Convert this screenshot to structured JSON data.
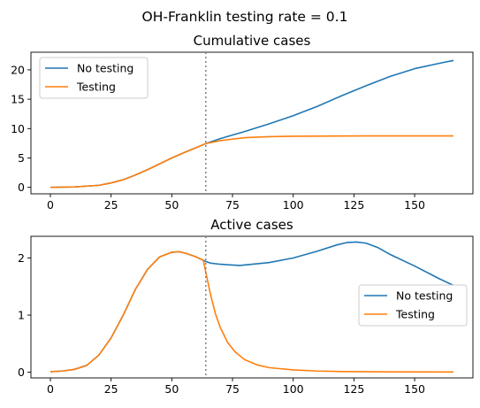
{
  "figure": {
    "title": "OH-Franklin testing rate = 0.1"
  },
  "colors": {
    "no_testing": "#1f77b4",
    "testing": "#ff7f0e",
    "vline": "#808080"
  },
  "chart_data": [
    {
      "type": "line",
      "title": "Cumulative cases",
      "xlabel": "",
      "ylabel": "",
      "xlim": [
        -8,
        174
      ],
      "ylim": [
        -1.1,
        23
      ],
      "xticks": [
        0,
        25,
        50,
        75,
        100,
        125,
        150
      ],
      "yticks": [
        0,
        5,
        10,
        15,
        20
      ],
      "vline_x": 64,
      "legend": "top-left",
      "series": [
        {
          "name": "No testing",
          "color": "#1f77b4",
          "x": [
            0,
            10,
            20,
            25,
            30,
            35,
            40,
            45,
            50,
            55,
            60,
            64,
            70,
            80,
            90,
            100,
            110,
            120,
            130,
            140,
            150,
            160,
            166
          ],
          "y": [
            0.0,
            0.08,
            0.35,
            0.75,
            1.3,
            2.1,
            3.0,
            4.0,
            5.0,
            5.9,
            6.75,
            7.45,
            8.3,
            9.5,
            10.8,
            12.2,
            13.8,
            15.6,
            17.3,
            18.9,
            20.2,
            21.1,
            21.6
          ]
        },
        {
          "name": "Testing",
          "color": "#ff7f0e",
          "x": [
            0,
            10,
            20,
            25,
            30,
            35,
            40,
            45,
            50,
            55,
            60,
            64,
            70,
            80,
            90,
            100,
            110,
            120,
            130,
            140,
            150,
            160,
            166
          ],
          "y": [
            0.0,
            0.08,
            0.35,
            0.75,
            1.3,
            2.1,
            3.0,
            4.0,
            5.0,
            5.9,
            6.75,
            7.45,
            7.95,
            8.45,
            8.62,
            8.7,
            8.72,
            8.74,
            8.75,
            8.75,
            8.75,
            8.75,
            8.75
          ]
        }
      ]
    },
    {
      "type": "line",
      "title": "Active cases",
      "xlabel": "",
      "ylabel": "",
      "xlim": [
        -8,
        174
      ],
      "ylim": [
        -0.1,
        2.38
      ],
      "xticks": [
        0,
        25,
        50,
        75,
        100,
        125,
        150
      ],
      "yticks": [
        0,
        1,
        2
      ],
      "vline_x": 64,
      "legend": "center-right",
      "series": [
        {
          "name": "No testing",
          "color": "#1f77b4",
          "x": [
            0,
            5,
            10,
            15,
            20,
            25,
            30,
            35,
            40,
            45,
            50,
            53,
            56,
            60,
            63,
            64,
            66,
            70,
            78,
            90,
            100,
            110,
            118,
            122,
            126,
            130,
            135,
            140,
            150,
            160,
            166
          ],
          "y": [
            0.01,
            0.02,
            0.05,
            0.12,
            0.3,
            0.6,
            1.0,
            1.45,
            1.8,
            2.02,
            2.1,
            2.11,
            2.08,
            2.02,
            1.96,
            1.94,
            1.91,
            1.89,
            1.87,
            1.92,
            2.0,
            2.12,
            2.23,
            2.27,
            2.28,
            2.26,
            2.18,
            2.06,
            1.86,
            1.64,
            1.52
          ]
        },
        {
          "name": "Testing",
          "color": "#ff7f0e",
          "x": [
            0,
            5,
            10,
            15,
            20,
            25,
            30,
            35,
            40,
            45,
            50,
            53,
            56,
            60,
            63,
            64,
            66,
            68,
            70,
            73,
            76,
            80,
            85,
            90,
            100,
            110,
            120,
            140,
            166
          ],
          "y": [
            0.01,
            0.02,
            0.05,
            0.12,
            0.3,
            0.6,
            1.0,
            1.45,
            1.8,
            2.02,
            2.1,
            2.11,
            2.08,
            2.02,
            1.96,
            1.75,
            1.35,
            1.02,
            0.78,
            0.52,
            0.36,
            0.22,
            0.13,
            0.08,
            0.04,
            0.02,
            0.012,
            0.006,
            0.003
          ]
        }
      ]
    }
  ]
}
